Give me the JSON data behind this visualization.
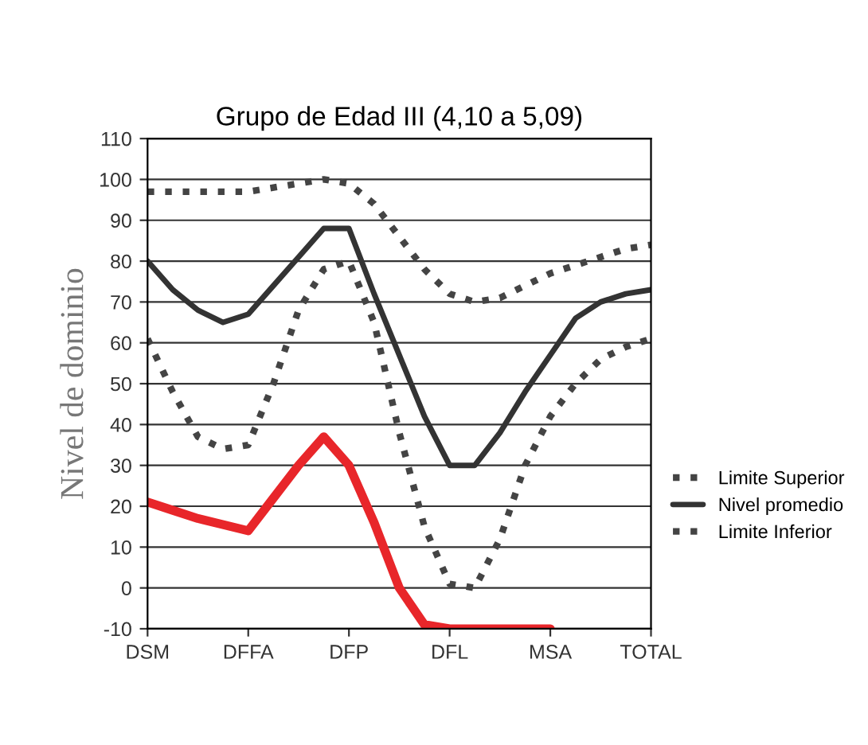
{
  "chart_data": {
    "type": "line",
    "title": "Grupo de Edad III (4,10 a 5,09)",
    "ylabel": "Nivel de dominio",
    "categories": [
      "DSM",
      null,
      null,
      null,
      "DFFA",
      null,
      null,
      null,
      "DFP",
      null,
      null,
      null,
      "DFL",
      null,
      null,
      null,
      "MSA",
      null,
      null,
      null,
      "TOTAL"
    ],
    "ylim": [
      -10,
      110
    ],
    "yticks": [
      -10,
      0,
      10,
      20,
      30,
      40,
      50,
      60,
      70,
      80,
      90,
      100,
      110
    ],
    "grid": "y",
    "legend": "right",
    "series": [
      {
        "name": "Limite Superior",
        "color": "#444444",
        "line_style": "dotted",
        "values": [
          97,
          97,
          97,
          97,
          97,
          98,
          99,
          100,
          99,
          94,
          86,
          78,
          72,
          70,
          71,
          74,
          77,
          79,
          81,
          83,
          84
        ]
      },
      {
        "name": "Nivel promedio",
        "color": "#333333",
        "line_style": "solid",
        "values": [
          80,
          73,
          68,
          65,
          67,
          74,
          81,
          88,
          88,
          72,
          57,
          42,
          30,
          30,
          38,
          48,
          57,
          66,
          70,
          72,
          73
        ]
      },
      {
        "name": "Limite Inferior",
        "color": "#444444",
        "line_style": "dotted",
        "values": [
          61,
          48,
          37,
          34,
          35,
          50,
          68,
          78,
          80,
          65,
          38,
          15,
          1,
          0,
          12,
          30,
          42,
          50,
          56,
          59,
          61
        ]
      },
      {
        "color": "#e8262a",
        "line_style": "solid",
        "values": [
          21,
          19,
          17,
          15.5,
          14,
          22,
          30,
          37,
          30,
          16,
          0,
          -9,
          -10,
          -10,
          -10,
          -10,
          -10,
          null,
          null,
          null,
          null
        ]
      }
    ]
  }
}
